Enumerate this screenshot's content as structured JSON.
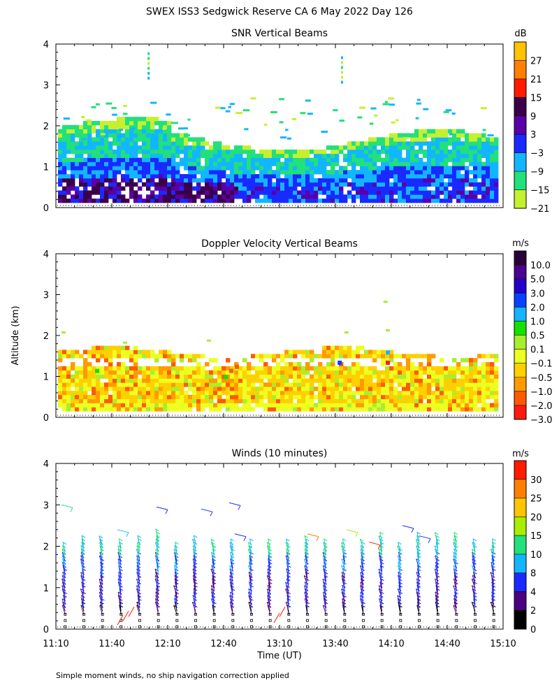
{
  "figure": {
    "title": "SWEX ISS3 Sedgwick Reserve CA   6 May 2022 Day 126",
    "footnote": "Simple moment winds, no ship navigation correction applied",
    "ylabel": "Altitude (km)",
    "xlabel": "Time (UT)"
  },
  "chart_data": [
    {
      "type": "heatmap",
      "title": "SNR Vertical Beams",
      "ylabel": "Altitude (km)",
      "xlim": [
        "11:10",
        "15:10"
      ],
      "ylim": [
        0,
        4
      ],
      "yticks": [
        "0",
        "1",
        "2",
        "3",
        "4"
      ],
      "colorbar": {
        "unit": "dB",
        "labels": [
          "27",
          "21",
          "15",
          "9",
          "3",
          "−3",
          "−9",
          "−15",
          "−21"
        ],
        "colors": [
          "#ffc400",
          "#ff7f00",
          "#ff1a00",
          "#3c004a",
          "#5a00a8",
          "#1a2aff",
          "#12b6ff",
          "#22e07a",
          "#c4f030"
        ]
      },
      "description_values": {
        "data_top_km_typical": 1.6,
        "scattered_echoes_up_to_km": 3.9
      }
    },
    {
      "type": "heatmap",
      "title": "Doppler Velocity Vertical Beams",
      "ylabel": "Altitude (km)",
      "xlim": [
        "11:10",
        "15:10"
      ],
      "ylim": [
        0,
        4
      ],
      "yticks": [
        "0",
        "1",
        "2",
        "3",
        "4"
      ],
      "colorbar": {
        "unit": "m/s",
        "labels": [
          "10.0",
          "5.0",
          "3.0",
          "2.0",
          "1.0",
          "0.5",
          "0.1",
          "−0.1",
          "−0.5",
          "−1.0",
          "−2.0",
          "−3.0"
        ],
        "colors": [
          "#2a0038",
          "#4a0090",
          "#2200cc",
          "#0a40ff",
          "#14b4ff",
          "#16e000",
          "#a8ee30",
          "#ecff20",
          "#ffd000",
          "#ff9a00",
          "#ff5a00",
          "#ff1a10"
        ]
      }
    },
    {
      "type": "wind_barbs",
      "title": "Winds (10 minutes)",
      "ylabel": "Altitude (km)",
      "xlabel": "Time (UT)",
      "xticks": [
        "11:10",
        "11:40",
        "12:10",
        "12:40",
        "13:10",
        "13:40",
        "14:10",
        "14:40",
        "15:10"
      ],
      "ylim": [
        0,
        4
      ],
      "yticks": [
        "0",
        "1",
        "2",
        "3",
        "4"
      ],
      "profile_times": [
        "11:10",
        "11:20",
        "11:30",
        "11:40",
        "11:50",
        "12:00",
        "12:10",
        "12:20",
        "12:30",
        "12:40",
        "12:50",
        "13:00",
        "13:10",
        "13:20",
        "13:30",
        "13:40",
        "13:50",
        "14:00",
        "14:10",
        "14:20",
        "14:30",
        "14:40",
        "14:50",
        "15:00"
      ],
      "colorbar": {
        "unit": "m/s",
        "labels": [
          "30",
          "25",
          "20",
          "15",
          "10",
          "8",
          "4",
          "2",
          "0"
        ],
        "colors": [
          "#ff1a00",
          "#ff7f00",
          "#ffc400",
          "#a8ee00",
          "#22e07a",
          "#12b6ff",
          "#1a2aff",
          "#4a0080",
          "#000000"
        ]
      },
      "dominant_speed_range_ms": [
        4,
        10
      ]
    }
  ]
}
